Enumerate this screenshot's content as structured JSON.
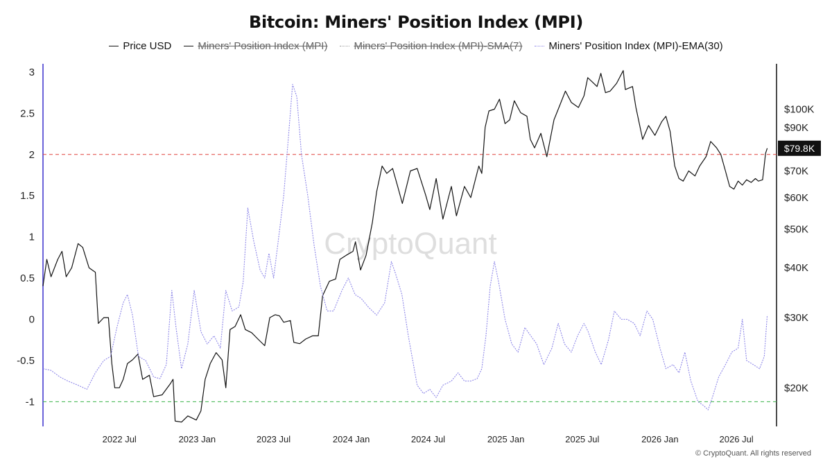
{
  "chart_data": {
    "type": "line",
    "title": "Bitcoin: Miners' Position Index (MPI)",
    "legend": [
      {
        "name": "Price USD",
        "color": "#111111",
        "style": "solid",
        "hidden": false
      },
      {
        "name": "Miners' Position Index (MPI)",
        "color": "#111111",
        "style": "solid",
        "hidden": true
      },
      {
        "name": "Miners' Position Index (MPI)-SMA(7)",
        "color": "#9e9e9e",
        "style": "dotted",
        "hidden": true
      },
      {
        "name": "Miners' Position Index (MPI)-EMA(30)",
        "color": "#8d86e8",
        "style": "dotted",
        "hidden": false
      }
    ],
    "legend_position": "top-center",
    "x_ticks": [
      "2022 Jul",
      "2023 Jan",
      "2023 Jul",
      "2024 Jan",
      "2024 Jul",
      "2025 Jan",
      "2025 Jul",
      "2026 Jan",
      "2026 Jul"
    ],
    "x_range": [
      "2022-01-01",
      "2026-10-04"
    ],
    "y_left": {
      "ticks": [
        "3",
        "2.5",
        "2",
        "1.5",
        "1",
        "0.5",
        "0",
        "-0.5",
        "-1"
      ],
      "range": [
        -1.3,
        3.1
      ]
    },
    "y_right": {
      "scale": "log",
      "ticks": [
        "$100K",
        "$90K",
        "$80K",
        "$70K",
        "$60K",
        "$50K",
        "$40K",
        "$30K",
        "$20K"
      ],
      "current_label": "$79.8K",
      "range": [
        16000,
        130000
      ]
    },
    "reference_lines": [
      {
        "axis": "left",
        "value": 2,
        "color": "#e0443f",
        "style": "dashed"
      },
      {
        "axis": "left",
        "value": -1,
        "color": "#3bb24a",
        "style": "dashed"
      }
    ],
    "series": [
      {
        "name": "Price USD",
        "axis": "right",
        "color": "#111111",
        "points": [
          [
            "2022-01-01",
            36000
          ],
          [
            "2022-01-10",
            42000
          ],
          [
            "2022-01-20",
            38000
          ],
          [
            "2022-02-05",
            42000
          ],
          [
            "2022-02-15",
            44000
          ],
          [
            "2022-02-25",
            38000
          ],
          [
            "2022-03-10",
            40000
          ],
          [
            "2022-03-25",
            46000
          ],
          [
            "2022-04-05",
            45000
          ],
          [
            "2022-04-20",
            40000
          ],
          [
            "2022-05-05",
            39000
          ],
          [
            "2022-05-12",
            29000
          ],
          [
            "2022-05-25",
            30000
          ],
          [
            "2022-06-05",
            30000
          ],
          [
            "2022-06-13",
            23000
          ],
          [
            "2022-06-20",
            20000
          ],
          [
            "2022-07-01",
            20000
          ],
          [
            "2022-07-10",
            21000
          ],
          [
            "2022-07-20",
            23000
          ],
          [
            "2022-08-01",
            23500
          ],
          [
            "2022-08-14",
            24300
          ],
          [
            "2022-08-25",
            21000
          ],
          [
            "2022-09-10",
            21500
          ],
          [
            "2022-09-20",
            19000
          ],
          [
            "2022-10-10",
            19200
          ],
          [
            "2022-10-30",
            20500
          ],
          [
            "2022-11-05",
            21000
          ],
          [
            "2022-11-10",
            16500
          ],
          [
            "2022-11-25",
            16400
          ],
          [
            "2022-12-10",
            17000
          ],
          [
            "2022-12-30",
            16600
          ],
          [
            "2023-01-10",
            17500
          ],
          [
            "2023-01-20",
            21000
          ],
          [
            "2023-02-01",
            23000
          ],
          [
            "2023-02-15",
            24500
          ],
          [
            "2023-03-01",
            23500
          ],
          [
            "2023-03-10",
            20000
          ],
          [
            "2023-03-20",
            28000
          ],
          [
            "2023-04-01",
            28500
          ],
          [
            "2023-04-14",
            30500
          ],
          [
            "2023-04-25",
            28000
          ],
          [
            "2023-05-10",
            27500
          ],
          [
            "2023-05-25",
            26500
          ],
          [
            "2023-06-10",
            25500
          ],
          [
            "2023-06-22",
            30000
          ],
          [
            "2023-07-05",
            30500
          ],
          [
            "2023-07-15",
            30300
          ],
          [
            "2023-07-25",
            29200
          ],
          [
            "2023-08-10",
            29500
          ],
          [
            "2023-08-18",
            26000
          ],
          [
            "2023-09-01",
            25800
          ],
          [
            "2023-09-15",
            26500
          ],
          [
            "2023-10-01",
            27000
          ],
          [
            "2023-10-15",
            27000
          ],
          [
            "2023-10-25",
            34000
          ],
          [
            "2023-11-10",
            37000
          ],
          [
            "2023-11-25",
            37500
          ],
          [
            "2023-12-05",
            42000
          ],
          [
            "2023-12-20",
            43000
          ],
          [
            "2024-01-05",
            44000
          ],
          [
            "2024-01-11",
            46500
          ],
          [
            "2024-01-23",
            39500
          ],
          [
            "2024-02-05",
            43000
          ],
          [
            "2024-02-20",
            52000
          ],
          [
            "2024-03-01",
            62000
          ],
          [
            "2024-03-14",
            72000
          ],
          [
            "2024-03-25",
            69000
          ],
          [
            "2024-04-08",
            71000
          ],
          [
            "2024-04-20",
            64000
          ],
          [
            "2024-05-01",
            58000
          ],
          [
            "2024-05-20",
            70000
          ],
          [
            "2024-06-05",
            71000
          ],
          [
            "2024-06-25",
            61000
          ],
          [
            "2024-07-05",
            56000
          ],
          [
            "2024-07-20",
            67000
          ],
          [
            "2024-08-05",
            53000
          ],
          [
            "2024-08-25",
            64000
          ],
          [
            "2024-09-06",
            54000
          ],
          [
            "2024-09-25",
            64000
          ],
          [
            "2024-10-10",
            60000
          ],
          [
            "2024-10-29",
            72000
          ],
          [
            "2024-11-05",
            69000
          ],
          [
            "2024-11-13",
            90000
          ],
          [
            "2024-11-22",
            99000
          ],
          [
            "2024-12-05",
            100000
          ],
          [
            "2024-12-17",
            106000
          ],
          [
            "2024-12-30",
            92000
          ],
          [
            "2025-01-10",
            94000
          ],
          [
            "2025-01-21",
            105000
          ],
          [
            "2025-02-05",
            98000
          ],
          [
            "2025-02-20",
            96000
          ],
          [
            "2025-02-28",
            84000
          ],
          [
            "2025-03-10",
            80000
          ],
          [
            "2025-03-25",
            87000
          ],
          [
            "2025-04-08",
            76000
          ],
          [
            "2025-04-25",
            94000
          ],
          [
            "2025-05-10",
            103000
          ],
          [
            "2025-05-22",
            111000
          ],
          [
            "2025-06-05",
            104000
          ],
          [
            "2025-06-22",
            101000
          ],
          [
            "2025-07-05",
            108000
          ],
          [
            "2025-07-14",
            120000
          ],
          [
            "2025-07-25",
            117000
          ],
          [
            "2025-08-05",
            114000
          ],
          [
            "2025-08-14",
            123000
          ],
          [
            "2025-08-25",
            110000
          ],
          [
            "2025-09-05",
            111000
          ],
          [
            "2025-09-20",
            116000
          ],
          [
            "2025-10-06",
            125000
          ],
          [
            "2025-10-11",
            112000
          ],
          [
            "2025-10-28",
            114000
          ],
          [
            "2025-11-05",
            101000
          ],
          [
            "2025-11-21",
            84000
          ],
          [
            "2025-12-05",
            91000
          ],
          [
            "2025-12-20",
            86000
          ],
          [
            "2026-01-05",
            93000
          ],
          [
            "2026-01-15",
            96000
          ],
          [
            "2026-01-25",
            88000
          ],
          [
            "2026-02-05",
            72000
          ],
          [
            "2026-02-15",
            67000
          ],
          [
            "2026-02-25",
            66000
          ],
          [
            "2026-03-10",
            70000
          ],
          [
            "2026-03-25",
            68000
          ],
          [
            "2026-04-05",
            72000
          ],
          [
            "2026-04-20",
            76000
          ],
          [
            "2026-05-01",
            83000
          ],
          [
            "2026-05-15",
            80000
          ],
          [
            "2026-05-25",
            77000
          ],
          [
            "2026-06-05",
            70000
          ],
          [
            "2026-06-15",
            64000
          ],
          [
            "2026-06-25",
            63000
          ],
          [
            "2026-07-05",
            66000
          ],
          [
            "2026-07-15",
            64500
          ],
          [
            "2026-07-25",
            66500
          ],
          [
            "2026-08-05",
            65500
          ],
          [
            "2026-08-15",
            67000
          ],
          [
            "2026-08-22",
            66000
          ],
          [
            "2026-09-01",
            66500
          ],
          [
            "2026-09-08",
            77500
          ],
          [
            "2026-09-12",
            79800
          ]
        ]
      },
      {
        "name": "Miners' Position Index (MPI)-EMA(30)",
        "axis": "left",
        "color": "#8d86e8",
        "points": [
          [
            "2022-01-01",
            -0.6
          ],
          [
            "2022-01-20",
            -0.62
          ],
          [
            "2022-02-10",
            -0.7
          ],
          [
            "2022-03-01",
            -0.75
          ],
          [
            "2022-03-25",
            -0.8
          ],
          [
            "2022-04-15",
            -0.85
          ],
          [
            "2022-05-05",
            -0.65
          ],
          [
            "2022-05-25",
            -0.5
          ],
          [
            "2022-06-10",
            -0.45
          ],
          [
            "2022-06-25",
            -0.1
          ],
          [
            "2022-07-10",
            0.2
          ],
          [
            "2022-07-20",
            0.3
          ],
          [
            "2022-08-01",
            0.05
          ],
          [
            "2022-08-15",
            -0.45
          ],
          [
            "2022-09-01",
            -0.5
          ],
          [
            "2022-09-20",
            -0.7
          ],
          [
            "2022-10-05",
            -0.72
          ],
          [
            "2022-10-20",
            -0.55
          ],
          [
            "2022-11-02",
            0.35
          ],
          [
            "2022-11-12",
            -0.1
          ],
          [
            "2022-11-25",
            -0.6
          ],
          [
            "2022-12-10",
            -0.3
          ],
          [
            "2022-12-25",
            0.35
          ],
          [
            "2023-01-10",
            -0.15
          ],
          [
            "2023-01-25",
            -0.3
          ],
          [
            "2023-02-10",
            -0.2
          ],
          [
            "2023-02-25",
            -0.35
          ],
          [
            "2023-03-10",
            0.35
          ],
          [
            "2023-03-25",
            0.1
          ],
          [
            "2023-04-10",
            0.15
          ],
          [
            "2023-04-20",
            0.45
          ],
          [
            "2023-05-01",
            1.35
          ],
          [
            "2023-05-15",
            0.95
          ],
          [
            "2023-05-30",
            0.6
          ],
          [
            "2023-06-10",
            0.5
          ],
          [
            "2023-06-20",
            0.8
          ],
          [
            "2023-07-01",
            0.5
          ],
          [
            "2023-07-12",
            0.95
          ],
          [
            "2023-07-25",
            1.5
          ],
          [
            "2023-08-05",
            2.2
          ],
          [
            "2023-08-15",
            2.85
          ],
          [
            "2023-08-25",
            2.7
          ],
          [
            "2023-09-05",
            2.0
          ],
          [
            "2023-09-20",
            1.5
          ],
          [
            "2023-10-05",
            0.9
          ],
          [
            "2023-10-20",
            0.4
          ],
          [
            "2023-11-05",
            0.1
          ],
          [
            "2023-11-20",
            0.1
          ],
          [
            "2023-12-10",
            0.35
          ],
          [
            "2023-12-25",
            0.5
          ],
          [
            "2024-01-10",
            0.3
          ],
          [
            "2024-01-25",
            0.25
          ],
          [
            "2024-02-10",
            0.15
          ],
          [
            "2024-03-01",
            0.05
          ],
          [
            "2024-03-20",
            0.2
          ],
          [
            "2024-04-05",
            0.7
          ],
          [
            "2024-04-15",
            0.55
          ],
          [
            "2024-04-30",
            0.3
          ],
          [
            "2024-05-15",
            -0.2
          ],
          [
            "2024-06-05",
            -0.8
          ],
          [
            "2024-06-20",
            -0.9
          ],
          [
            "2024-07-05",
            -0.85
          ],
          [
            "2024-07-20",
            -0.95
          ],
          [
            "2024-08-05",
            -0.8
          ],
          [
            "2024-08-25",
            -0.75
          ],
          [
            "2024-09-10",
            -0.65
          ],
          [
            "2024-09-25",
            -0.75
          ],
          [
            "2024-10-10",
            -0.75
          ],
          [
            "2024-10-25",
            -0.72
          ],
          [
            "2024-11-05",
            -0.6
          ],
          [
            "2024-11-15",
            -0.2
          ],
          [
            "2024-11-25",
            0.4
          ],
          [
            "2024-12-05",
            0.7
          ],
          [
            "2024-12-15",
            0.45
          ],
          [
            "2024-12-30",
            0.0
          ],
          [
            "2025-01-15",
            -0.3
          ],
          [
            "2025-01-30",
            -0.4
          ],
          [
            "2025-02-15",
            -0.1
          ],
          [
            "2025-03-01",
            -0.2
          ],
          [
            "2025-03-15",
            -0.3
          ],
          [
            "2025-04-01",
            -0.55
          ],
          [
            "2025-04-20",
            -0.35
          ],
          [
            "2025-05-05",
            -0.05
          ],
          [
            "2025-05-20",
            -0.3
          ],
          [
            "2025-06-05",
            -0.4
          ],
          [
            "2025-06-20",
            -0.2
          ],
          [
            "2025-07-05",
            -0.05
          ],
          [
            "2025-07-15",
            -0.15
          ],
          [
            "2025-08-01",
            -0.4
          ],
          [
            "2025-08-15",
            -0.55
          ],
          [
            "2025-09-01",
            -0.25
          ],
          [
            "2025-09-15",
            0.1
          ],
          [
            "2025-10-01",
            0.0
          ],
          [
            "2025-10-15",
            0.0
          ],
          [
            "2025-11-01",
            -0.05
          ],
          [
            "2025-11-15",
            -0.2
          ],
          [
            "2025-12-01",
            0.1
          ],
          [
            "2025-12-15",
            0.0
          ],
          [
            "2026-01-01",
            -0.35
          ],
          [
            "2026-01-15",
            -0.6
          ],
          [
            "2026-02-01",
            -0.55
          ],
          [
            "2026-02-15",
            -0.65
          ],
          [
            "2026-03-01",
            -0.4
          ],
          [
            "2026-03-15",
            -0.75
          ],
          [
            "2026-04-01",
            -1.0
          ],
          [
            "2026-04-15",
            -1.05
          ],
          [
            "2026-04-25",
            -1.1
          ],
          [
            "2026-05-05",
            -0.95
          ],
          [
            "2026-05-20",
            -0.7
          ],
          [
            "2026-06-05",
            -0.55
          ],
          [
            "2026-06-20",
            -0.4
          ],
          [
            "2026-07-05",
            -0.35
          ],
          [
            "2026-07-15",
            0.0
          ],
          [
            "2026-07-25",
            -0.5
          ],
          [
            "2026-08-10",
            -0.55
          ],
          [
            "2026-08-25",
            -0.6
          ],
          [
            "2026-09-05",
            -0.45
          ],
          [
            "2026-09-12",
            0.05
          ]
        ]
      }
    ],
    "watermark": "CryptoQuant",
    "copyright": "© CryptoQuant. All rights reserved"
  }
}
